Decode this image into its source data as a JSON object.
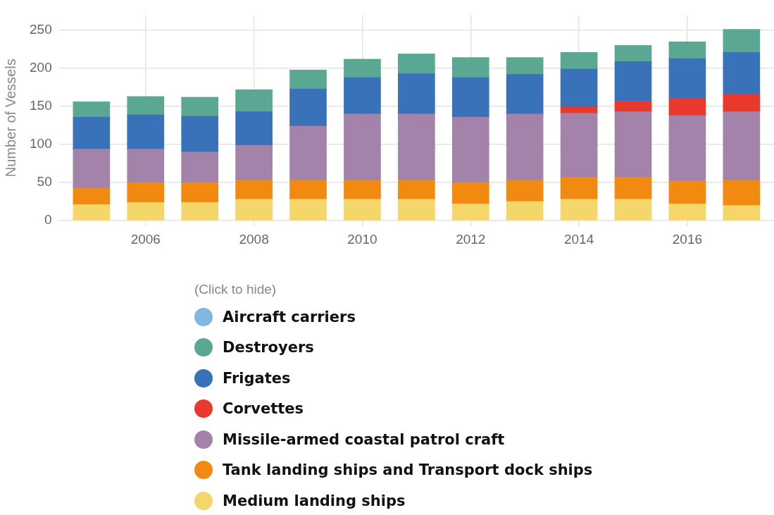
{
  "chart_data": {
    "type": "bar",
    "stacked": true,
    "ylabel": "Number of Vessels",
    "legend_title": "(Click to hide)",
    "legend": "bottom",
    "grid": true,
    "x": [
      2005,
      2006,
      2007,
      2008,
      2009,
      2010,
      2011,
      2012,
      2013,
      2014,
      2015,
      2016,
      2017
    ],
    "xlim": [
      2004.4,
      2017.6
    ],
    "xticks": [
      2006,
      2008,
      2010,
      2012,
      2014,
      2016
    ],
    "ylim": [
      0,
      270
    ],
    "yticks": [
      0,
      50,
      100,
      150,
      200,
      250
    ],
    "series": [
      {
        "name": "Medium landing ships",
        "color": "#f5d66b",
        "values": [
          21,
          24,
          24,
          28,
          28,
          28,
          28,
          22,
          25,
          28,
          28,
          22,
          20
        ]
      },
      {
        "name": "Tank landing ships and Transport dock ships",
        "color": "#f28a12",
        "values": [
          22,
          26,
          26,
          25,
          25,
          25,
          25,
          28,
          28,
          29,
          29,
          30,
          33
        ]
      },
      {
        "name": "Missile-armed coastal patrol craft",
        "color": "#a383aa",
        "values": [
          51,
          44,
          40,
          46,
          71,
          87,
          87,
          86,
          87,
          84,
          86,
          86,
          90
        ]
      },
      {
        "name": "Corvettes",
        "color": "#e8392c",
        "values": [
          0,
          0,
          0,
          0,
          0,
          0,
          0,
          0,
          0,
          9,
          14,
          22,
          23
        ]
      },
      {
        "name": "Frigates",
        "color": "#3a72ba",
        "values": [
          42,
          45,
          47,
          44,
          49,
          48,
          53,
          52,
          52,
          49,
          52,
          53,
          55
        ]
      },
      {
        "name": "Destroyers",
        "color": "#5aa793",
        "values": [
          20,
          24,
          25,
          29,
          25,
          24,
          26,
          26,
          22,
          22,
          21,
          22,
          30
        ]
      },
      {
        "name": "Aircraft carriers",
        "color": "#82b8df",
        "values": [
          0,
          0,
          0,
          0,
          0,
          0,
          0,
          0,
          0,
          0,
          0,
          0,
          0
        ]
      }
    ]
  }
}
